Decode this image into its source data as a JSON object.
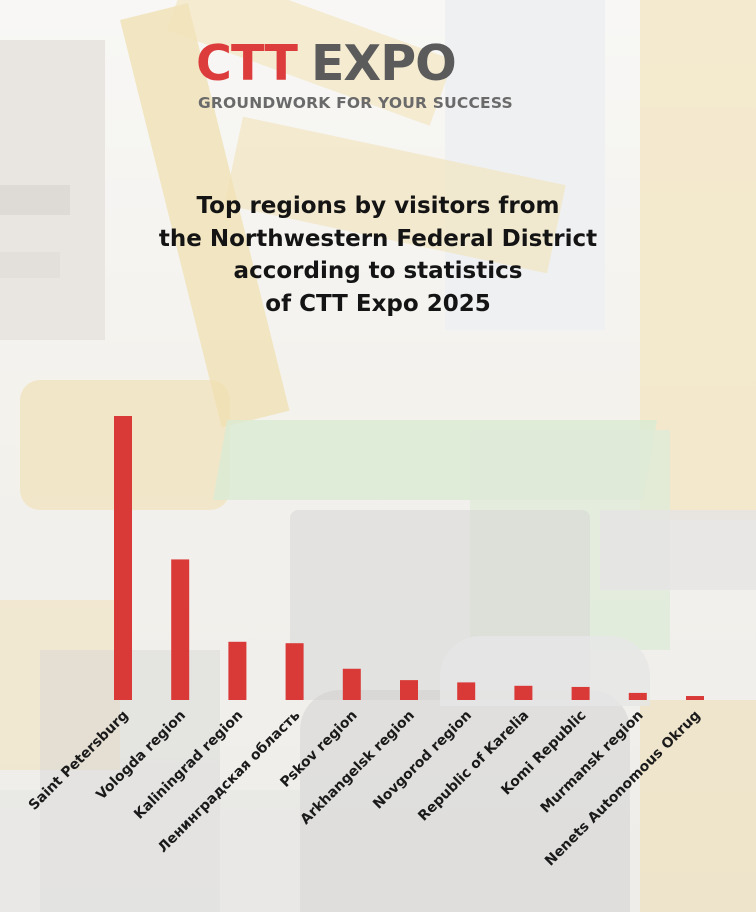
{
  "brand": {
    "logo_left": "CTT",
    "logo_right": "EXPO",
    "tagline": "GROUNDWORK FOR YOUR SUCCESS",
    "colors": {
      "red": "#dc3c3c",
      "gray": "#5b5b5b"
    }
  },
  "chart_data": {
    "type": "bar",
    "title_lines": [
      "Top regions by visitors from",
      "the Northwestern Federal District",
      "according to statistics",
      "of CTT Expo 2025"
    ],
    "categories": [
      "Saint Petersburg",
      "Vologda region",
      "Kaliningrad region",
      "Ленинградская область",
      "Pskov region",
      "Arkhangelsk region",
      "Novgorod region",
      "Republic of Karelia",
      "Komi Republic",
      "Murmansk region",
      "Nenets Autonomous Okrug"
    ],
    "values": [
      100,
      49.5,
      20.5,
      20,
      11,
      7,
      6.2,
      5,
      4.6,
      2.5,
      1.4
    ],
    "value_note": "relative bar heights (no value axis shown)",
    "bar_color": "#d93a38",
    "axis": {
      "y_visible": false,
      "grid": false
    },
    "ylim": [
      0,
      100
    ]
  }
}
